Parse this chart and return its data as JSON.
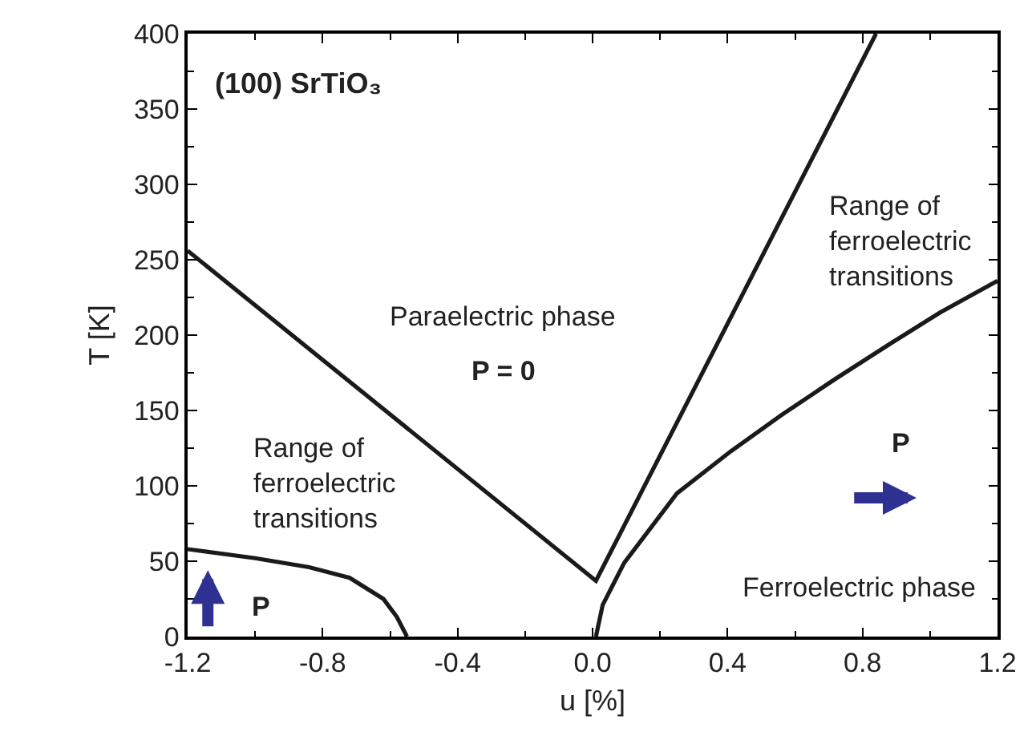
{
  "chart_data": {
    "type": "line",
    "xlabel": "u [%]",
    "ylabel": "T [K]",
    "xlim": [
      -1.2,
      1.2
    ],
    "xticks": [
      {
        "value": -1.2,
        "label": "-1.2"
      },
      {
        "value": -0.8,
        "label": "-0.8"
      },
      {
        "value": -0.4,
        "label": "-0.4"
      },
      {
        "value": 0,
        "label": "0.0"
      },
      {
        "value": 0.4,
        "label": "0.4"
      },
      {
        "value": 0.8,
        "label": "0.8"
      },
      {
        "value": 1.2,
        "label": "1.2"
      }
    ],
    "ylim": [
      0,
      400
    ],
    "yticks": [
      0,
      50,
      100,
      150,
      200,
      250,
      300,
      350,
      400
    ],
    "marker": "none",
    "line_style": "solid",
    "series": [
      {
        "color": "#1a1a1a",
        "x": [
          -1.2,
          0.01,
          0.84
        ],
        "values": [
          256,
          37,
          400
        ]
      },
      {
        "color": "#1a1a1a",
        "x": [
          0.01,
          0.03,
          0.094,
          0.25,
          0.41,
          0.56,
          0.72,
          0.88,
          1.03,
          1.2
        ],
        "values": [
          0,
          21,
          49,
          95,
          123,
          147,
          171,
          194,
          215,
          236
        ]
      },
      {
        "color": "#1a1a1a",
        "x": [
          -1.2,
          -1.0,
          -0.84,
          -0.72,
          -0.62,
          -0.58,
          -0.55
        ],
        "values": [
          58,
          52,
          46,
          39,
          25,
          13,
          0
        ]
      }
    ],
    "annotations": [
      "(100) SrTiO₃",
      "Paraelectric phase",
      "P = 0",
      "Range of\nferroelectric\ntransitions",
      "Range of\nferroelectric\ntransitions",
      "Ferroelectric phase",
      "P",
      "P"
    ]
  }
}
